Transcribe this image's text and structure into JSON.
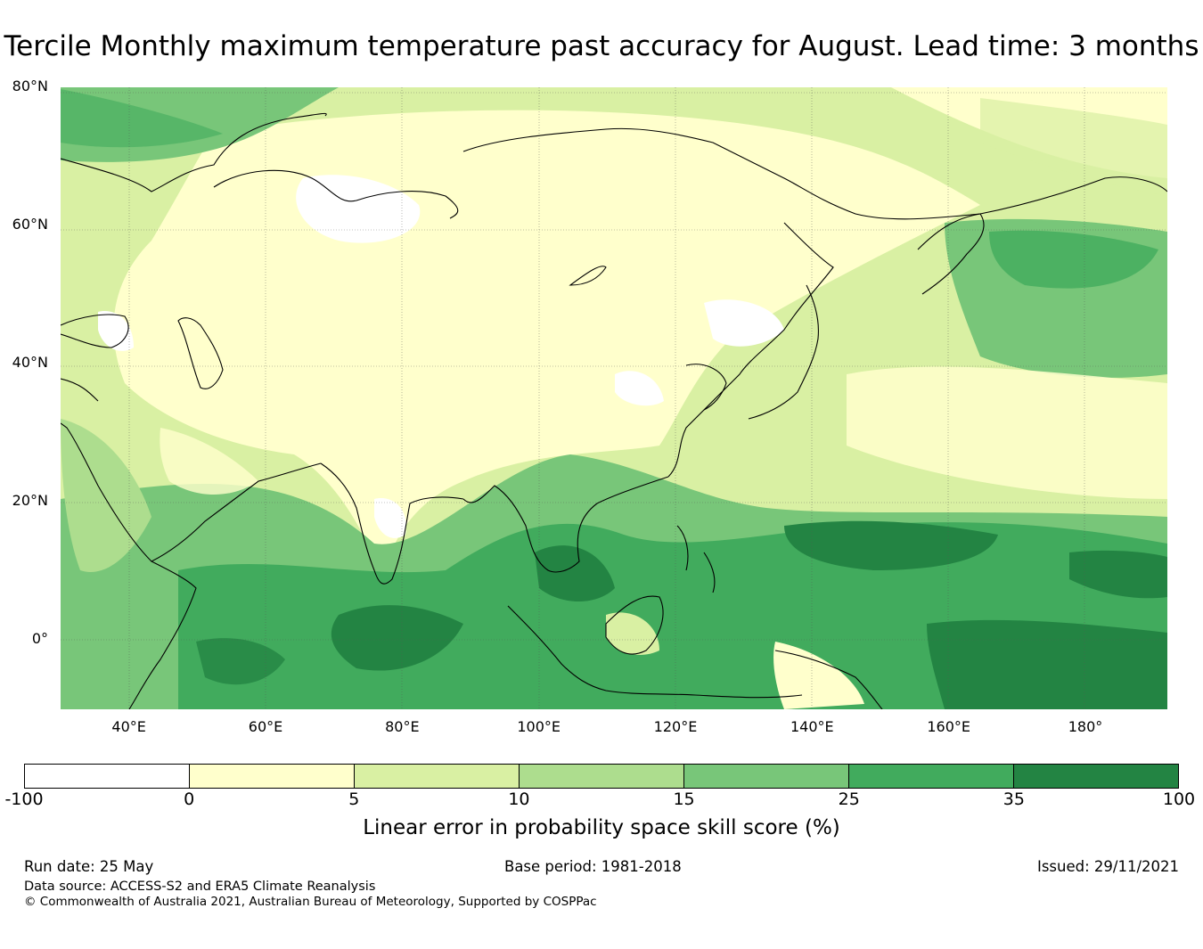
{
  "title": "Tercile Monthly maximum temperature past accuracy for August. Lead time: 3 months",
  "map": {
    "lat_labels": [
      {
        "text": "80°N",
        "lat": 80
      },
      {
        "text": "60°N",
        "lat": 60
      },
      {
        "text": "40°N",
        "lat": 40
      },
      {
        "text": "20°N",
        "lat": 20
      },
      {
        "text": "0°",
        "lat": 0
      }
    ],
    "lon_labels": [
      {
        "text": "40°E",
        "lon": 40
      },
      {
        "text": "60°E",
        "lon": 60
      },
      {
        "text": "80°E",
        "lon": 80
      },
      {
        "text": "100°E",
        "lon": 100
      },
      {
        "text": "120°E",
        "lon": 120
      },
      {
        "text": "140°E",
        "lon": 140
      },
      {
        "text": "160°E",
        "lon": 160
      },
      {
        "text": "180°",
        "lon": 180
      }
    ],
    "lon_range": [
      30,
      192
    ],
    "lat_range": [
      -10,
      80
    ]
  },
  "colorbar": {
    "ticks": [
      "-100",
      "0",
      "5",
      "10",
      "15",
      "25",
      "35",
      "100"
    ],
    "colors": [
      "#ffffff",
      "#ffffcc",
      "#d9f0a3",
      "#addd8e",
      "#78c679",
      "#41ab5d",
      "#238443"
    ],
    "label": "Linear error in probability space skill score (%)"
  },
  "footer": {
    "run_date": "Run date: 25 May",
    "base_period": "Base period: 1981-2018",
    "issued": "Issued: 29/11/2021",
    "data_source": "Data source: ACCESS-S2 and ERA5 Climate Reanalysis",
    "copyright": "© Commonwealth of Australia 2021, Australian Bureau of Meteorology, Supported by COSPPac"
  }
}
